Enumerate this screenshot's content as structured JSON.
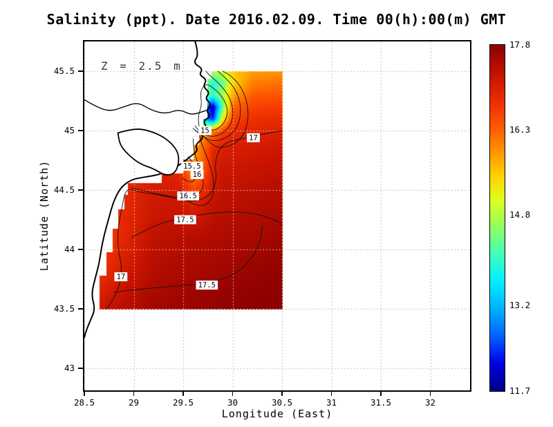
{
  "title": "Salinity (ppt). Date 2016.02.09. Time 00(h):00(m) GMT",
  "annotation": "Z = 2.5 m",
  "axes": {
    "x_label": "Longitude (East)",
    "y_label": "Latitude (North)",
    "x_ticks": [
      {
        "label": "28.5",
        "value": 28.5
      },
      {
        "label": "29",
        "value": 29
      },
      {
        "label": "29.5",
        "value": 29.5
      },
      {
        "label": "30",
        "value": 30
      },
      {
        "label": "30.5",
        "value": 30.5
      },
      {
        "label": "31",
        "value": 31
      },
      {
        "label": "31.5",
        "value": 31.5
      },
      {
        "label": "32",
        "value": 32
      }
    ],
    "y_ticks": [
      {
        "label": "45.5",
        "value": 45.5
      },
      {
        "label": "45",
        "value": 45
      },
      {
        "label": "44.5",
        "value": 44.5
      },
      {
        "label": "44",
        "value": 44
      },
      {
        "label": "43.5",
        "value": 43.5
      },
      {
        "label": "43",
        "value": 43
      }
    ]
  },
  "colorbar": {
    "min": 11.7,
    "max": 17.8,
    "tick_labels": [
      {
        "label": "17.8",
        "value": 17.8
      },
      {
        "label": "16.3",
        "value": 16.3
      },
      {
        "label": "14.8",
        "value": 14.8
      },
      {
        "label": "13.2",
        "value": 13.2
      },
      {
        "label": "11.7",
        "value": 11.7
      }
    ],
    "colormap": [
      {
        "t": 0.0,
        "c": "#000082"
      },
      {
        "t": 0.08,
        "c": "#0000E8"
      },
      {
        "t": 0.16,
        "c": "#0064FF"
      },
      {
        "t": 0.24,
        "c": "#00B4FF"
      },
      {
        "t": 0.32,
        "c": "#00F0FF"
      },
      {
        "t": 0.4,
        "c": "#46FFB4"
      },
      {
        "t": 0.48,
        "c": "#96FF5A"
      },
      {
        "t": 0.55,
        "c": "#DCFF1E"
      },
      {
        "t": 0.62,
        "c": "#FFD200"
      },
      {
        "t": 0.69,
        "c": "#FF9600"
      },
      {
        "t": 0.76,
        "c": "#FF5A00"
      },
      {
        "t": 0.83,
        "c": "#F03000"
      },
      {
        "t": 0.91,
        "c": "#C81400"
      },
      {
        "t": 1.0,
        "c": "#8C0000"
      }
    ]
  },
  "chart_data": {
    "type": "heatmap",
    "variable": "Salinity",
    "units": "ppt",
    "date": "2016.02.09",
    "time": "00(h):00(m) GMT",
    "depth_label": "Z = 2.5 m",
    "xlabel": "Longitude (East)",
    "ylabel": "Latitude (North)",
    "xlim": [
      28.5,
      32.4
    ],
    "ylim": [
      42.81,
      45.75
    ],
    "zlim": [
      11.7,
      17.8
    ],
    "lon_range": [
      28.6,
      30.5
    ],
    "lat_range": [
      43.5,
      45.5
    ],
    "contour_levels": [
      15,
      15.5,
      16,
      16.5,
      17,
      17.5
    ],
    "lons": [
      28.6,
      28.9,
      29.2,
      29.45,
      29.6,
      29.7,
      29.8,
      29.9,
      30.0,
      30.2,
      30.5
    ],
    "lats": [
      43.5,
      43.8,
      44.1,
      44.4,
      44.65,
      44.85,
      45.0,
      45.1,
      45.2,
      45.3,
      45.4,
      45.5
    ],
    "values": [
      [
        17.18,
        17.42,
        17.6,
        17.66,
        17.69,
        17.71,
        17.74,
        17.76,
        17.78,
        17.8,
        17.8
      ],
      [
        16.72,
        17.14,
        17.45,
        17.52,
        17.56,
        17.58,
        17.6,
        17.62,
        17.65,
        17.69,
        17.76
      ],
      [
        16.41,
        16.93,
        17.32,
        17.39,
        17.42,
        17.44,
        17.46,
        17.49,
        17.51,
        17.55,
        17.62
      ],
      [
        16.44,
        16.87,
        17.18,
        17.21,
        17.0,
        17.12,
        17.3,
        17.35,
        17.37,
        17.42,
        17.48
      ],
      [
        16.59,
        16.85,
        17.05,
        16.95,
        15.95,
        16.38,
        17.07,
        17.21,
        17.24,
        17.28,
        17.35
      ],
      [
        16.61,
        16.77,
        16.9,
        16.8,
        15.8,
        16.23,
        16.91,
        17.06,
        17.08,
        17.13,
        17.19
      ],
      [
        16.51,
        16.63,
        16.72,
        16.7,
        16.07,
        15.9,
        16.11,
        16.61,
        16.87,
        16.95,
        17.01
      ],
      [
        16.38,
        16.48,
        16.56,
        16.57,
        15.68,
        13.2,
        12.4,
        15.31,
        16.56,
        16.78,
        16.85
      ],
      [
        16.2,
        16.28,
        16.36,
        16.39,
        15.61,
        13.0,
        11.9,
        14.4,
        16.26,
        16.58,
        16.65
      ],
      [
        15.98,
        16.06,
        16.13,
        16.17,
        15.82,
        14.78,
        14.02,
        14.78,
        15.83,
        16.34,
        16.41
      ],
      [
        15.74,
        15.81,
        15.88,
        15.93,
        15.63,
        14.74,
        13.87,
        14.35,
        15.45,
        16.09,
        16.17
      ],
      [
        15.52,
        15.58,
        15.65,
        15.7,
        15.58,
        15.16,
        14.74,
        14.98,
        15.53,
        15.86,
        15.93
      ]
    ],
    "mask_west": [
      {
        "from": 43.5,
        "to": 43.78,
        "min_lon": 28.65
      },
      {
        "from": 43.78,
        "to": 43.98,
        "min_lon": 28.72
      },
      {
        "from": 43.98,
        "to": 44.18,
        "min_lon": 28.78
      },
      {
        "from": 44.18,
        "to": 44.34,
        "min_lon": 28.84
      },
      {
        "from": 44.34,
        "to": 44.46,
        "min_lon": 28.9
      },
      {
        "from": 44.46,
        "to": 44.56,
        "min_lon": 28.94
      },
      {
        "from": 44.56,
        "to": 44.64,
        "min_lon": 29.28
      },
      {
        "from": 44.64,
        "to": 44.76,
        "min_lon": 29.5
      },
      {
        "from": 44.76,
        "to": 44.88,
        "min_lon": 29.6
      },
      {
        "from": 44.88,
        "to": 45.0,
        "min_lon": 29.66
      },
      {
        "from": 45.0,
        "to": 45.1,
        "min_lon": 29.7
      },
      {
        "from": 45.1,
        "to": 45.24,
        "min_lon": 29.74
      },
      {
        "from": 45.24,
        "to": 45.34,
        "min_lon": 29.74
      },
      {
        "from": 45.34,
        "to": 45.44,
        "min_lon": 29.74
      },
      {
        "from": 45.44,
        "to": 45.5,
        "min_lon": 29.78
      }
    ],
    "contours": [
      {
        "level": "15",
        "pieces": [
          [
            [
              29.66,
              45.04
            ],
            [
              29.78,
              44.99
            ],
            [
              29.88,
              45.03
            ],
            [
              29.94,
              45.1
            ],
            [
              29.95,
              45.19
            ],
            [
              29.9,
              45.28
            ],
            [
              29.82,
              45.35
            ],
            [
              29.73,
              45.4
            ],
            [
              29.67,
              45.33
            ],
            [
              29.69,
              45.22
            ],
            [
              29.65,
              45.12
            ],
            [
              29.66,
              45.04
            ]
          ]
        ],
        "labels": [
          [
            29.72,
            45.0
          ]
        ]
      },
      {
        "level": "15.5",
        "pieces": [
          [
            [
              29.49,
              44.6
            ],
            [
              29.58,
              44.55
            ],
            [
              29.64,
              44.61
            ],
            [
              29.62,
              44.71
            ],
            [
              29.55,
              44.78
            ]
          ],
          [
            [
              29.62,
              45.0
            ],
            [
              29.76,
              44.94
            ],
            [
              29.9,
              44.97
            ],
            [
              29.99,
              45.06
            ],
            [
              30.01,
              45.17
            ],
            [
              29.96,
              45.3
            ],
            [
              29.86,
              45.4
            ],
            [
              29.76,
              45.47
            ],
            [
              29.73,
              45.5
            ]
          ]
        ],
        "labels": [
          [
            29.59,
            44.7
          ]
        ]
      },
      {
        "level": "16",
        "pieces": [
          [
            [
              29.46,
              44.5
            ],
            [
              29.58,
              44.44
            ],
            [
              29.69,
              44.48
            ],
            [
              29.71,
              44.58
            ],
            [
              29.66,
              44.7
            ],
            [
              29.61,
              44.82
            ],
            [
              29.6,
              44.93
            ]
          ],
          [
            [
              29.6,
              45.02
            ],
            [
              29.74,
              44.91
            ],
            [
              29.9,
              44.92
            ],
            [
              30.02,
              44.99
            ],
            [
              30.08,
              45.1
            ],
            [
              30.08,
              45.24
            ],
            [
              30.02,
              45.36
            ],
            [
              29.92,
              45.45
            ],
            [
              29.85,
              45.5
            ]
          ]
        ],
        "labels": [
          [
            29.64,
            44.63
          ]
        ]
      },
      {
        "level": "16.5",
        "pieces": [
          [
            [
              28.98,
              44.52
            ],
            [
              29.16,
              44.48
            ],
            [
              29.34,
              44.45
            ],
            [
              29.5,
              44.43
            ],
            [
              29.62,
              44.37
            ],
            [
              29.74,
              44.37
            ],
            [
              29.81,
              44.46
            ],
            [
              29.81,
              44.6
            ],
            [
              29.75,
              44.76
            ],
            [
              29.68,
              44.9
            ],
            [
              29.66,
              45.0
            ]
          ],
          [
            [
              29.62,
              45.04
            ],
            [
              29.78,
              44.86
            ],
            [
              29.96,
              44.86
            ],
            [
              30.1,
              44.94
            ],
            [
              30.16,
              45.08
            ],
            [
              30.15,
              45.24
            ],
            [
              30.08,
              45.38
            ],
            [
              29.97,
              45.47
            ],
            [
              29.9,
              45.5
            ]
          ]
        ],
        "labels": [
          [
            29.55,
            44.45
          ]
        ]
      },
      {
        "level": "17",
        "pieces": [
          [
            [
              30.5,
              45.0
            ],
            [
              30.3,
              44.97
            ],
            [
              30.1,
              44.93
            ],
            [
              29.95,
              44.91
            ],
            [
              29.86,
              44.84
            ],
            [
              29.82,
              44.72
            ],
            [
              29.84,
              44.58
            ],
            [
              29.78,
              44.46
            ],
            [
              29.64,
              44.4
            ],
            [
              29.46,
              44.42
            ],
            [
              29.26,
              44.46
            ],
            [
              29.06,
              44.48
            ],
            [
              28.92,
              44.52
            ],
            [
              28.88,
              44.35
            ],
            [
              28.84,
              44.18
            ],
            [
              28.84,
              44.0
            ],
            [
              28.88,
              43.86
            ],
            [
              28.86,
              43.7
            ],
            [
              28.78,
              43.56
            ],
            [
              28.72,
              43.5
            ]
          ]
        ],
        "labels": [
          [
            30.21,
            44.94
          ],
          [
            28.87,
            43.77
          ]
        ]
      },
      {
        "level": "17.5",
        "pieces": [
          [
            [
              28.98,
              44.1
            ],
            [
              29.2,
              44.2
            ],
            [
              29.45,
              44.26
            ],
            [
              29.72,
              44.3
            ],
            [
              30.0,
              44.32
            ],
            [
              30.25,
              44.3
            ],
            [
              30.45,
              44.24
            ],
            [
              30.5,
              44.21
            ]
          ],
          [
            [
              28.8,
              43.64
            ],
            [
              29.0,
              43.66
            ],
            [
              29.25,
              43.68
            ],
            [
              29.52,
              43.7
            ],
            [
              29.78,
              43.72
            ],
            [
              30.0,
              43.78
            ],
            [
              30.18,
              43.9
            ],
            [
              30.28,
              44.06
            ],
            [
              30.3,
              44.2
            ]
          ]
        ],
        "labels": [
          [
            29.52,
            44.25
          ],
          [
            29.74,
            43.7
          ]
        ]
      }
    ],
    "coastline": [
      [
        29.62,
        45.75
      ],
      [
        29.66,
        45.64
      ],
      [
        29.6,
        45.57
      ],
      [
        29.7,
        45.52
      ],
      [
        29.66,
        45.47
      ],
      [
        29.74,
        45.43
      ],
      [
        29.7,
        45.37
      ],
      [
        29.77,
        45.32
      ],
      [
        29.72,
        45.27
      ],
      [
        29.79,
        45.22
      ],
      [
        29.73,
        45.17
      ],
      [
        29.78,
        45.12
      ],
      [
        29.7,
        45.08
      ],
      [
        29.74,
        45.03
      ],
      [
        29.66,
        44.99
      ],
      [
        29.71,
        44.94
      ],
      [
        29.62,
        44.88
      ],
      [
        29.65,
        44.83
      ],
      [
        29.57,
        44.78
      ],
      [
        29.48,
        44.72
      ],
      [
        29.38,
        44.67
      ],
      [
        29.26,
        44.63
      ],
      [
        29.12,
        44.61
      ],
      [
        28.98,
        44.59
      ],
      [
        28.88,
        44.53
      ],
      [
        28.82,
        44.45
      ],
      [
        28.78,
        44.36
      ],
      [
        28.74,
        44.24
      ],
      [
        28.7,
        44.12
      ],
      [
        28.67,
        44.0
      ],
      [
        28.65,
        43.88
      ],
      [
        28.61,
        43.76
      ],
      [
        28.57,
        43.62
      ],
      [
        28.61,
        43.5
      ],
      [
        28.56,
        43.4
      ],
      [
        28.52,
        43.32
      ],
      [
        28.5,
        43.26
      ]
    ],
    "danube_river": [
      [
        28.5,
        45.26
      ],
      [
        28.62,
        45.2
      ],
      [
        28.76,
        45.16
      ],
      [
        28.9,
        45.2
      ],
      [
        29.04,
        45.24
      ],
      [
        29.18,
        45.17
      ],
      [
        29.32,
        45.14
      ],
      [
        29.46,
        45.18
      ],
      [
        29.58,
        45.13
      ],
      [
        29.7,
        45.16
      ],
      [
        29.73,
        45.17
      ]
    ],
    "lagoon": [
      [
        28.84,
        44.98
      ],
      [
        29.0,
        45.02
      ],
      [
        29.16,
        45.0
      ],
      [
        29.32,
        44.94
      ],
      [
        29.44,
        44.84
      ],
      [
        29.46,
        44.74
      ],
      [
        29.42,
        44.64
      ],
      [
        29.32,
        44.62
      ],
      [
        29.2,
        44.68
      ],
      [
        29.06,
        44.72
      ],
      [
        28.94,
        44.8
      ],
      [
        28.86,
        44.88
      ],
      [
        28.84,
        44.98
      ]
    ]
  }
}
